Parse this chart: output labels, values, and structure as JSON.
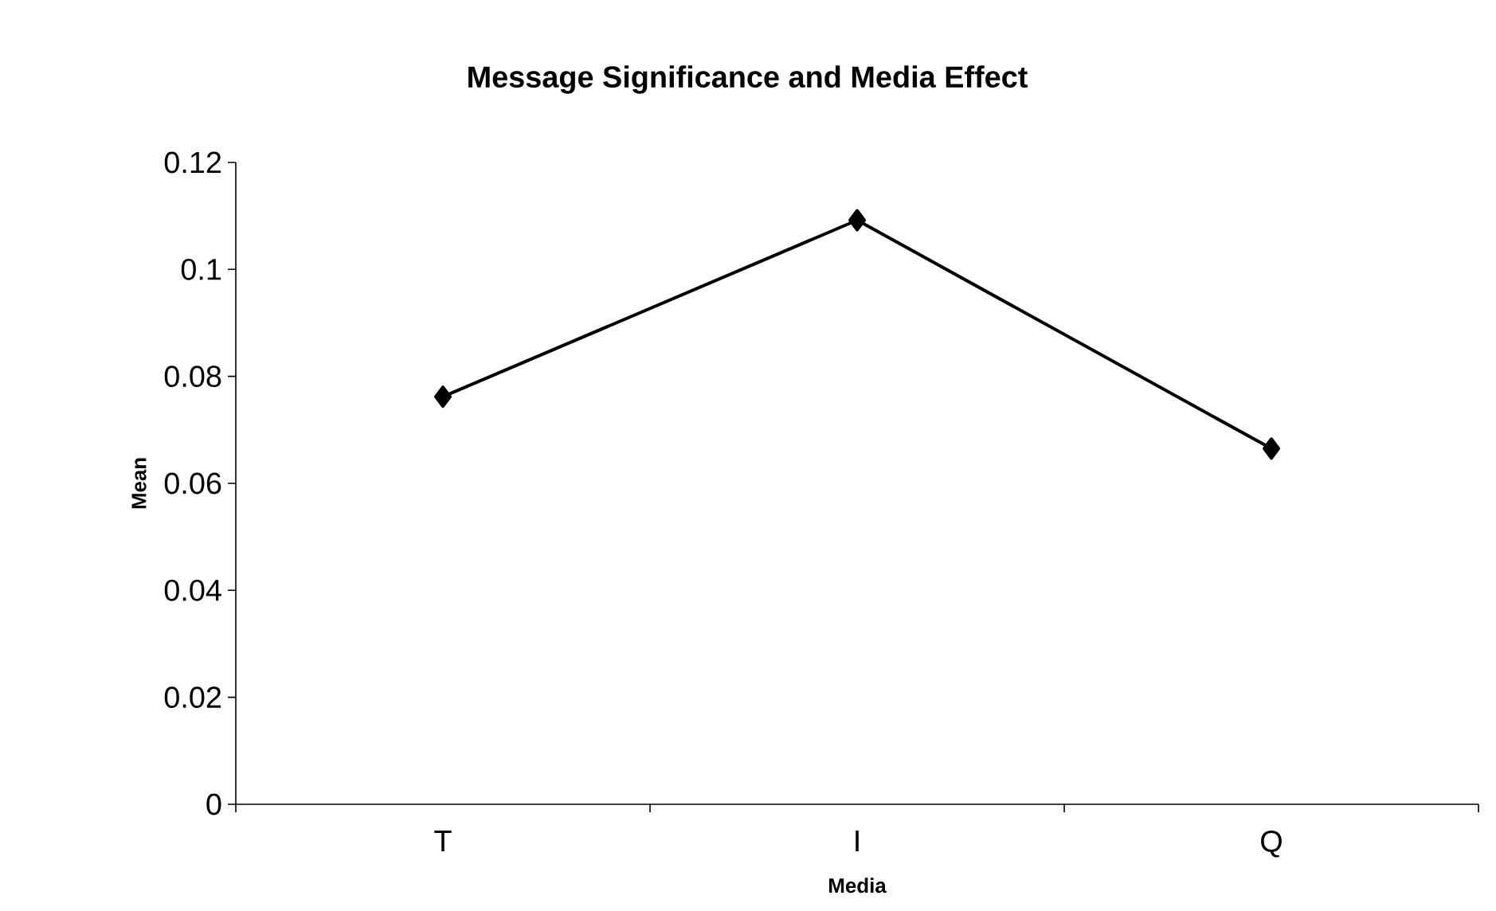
{
  "chart_data": {
    "type": "line",
    "title": "Message Significance and Media Effect",
    "xlabel": "Media",
    "ylabel": "Mean",
    "categories": [
      "T",
      "I",
      "Q"
    ],
    "series": [
      {
        "color": "#000000",
        "values": [
          0.0762,
          0.1092,
          0.0665
        ]
      }
    ],
    "ylim": [
      0,
      0.12
    ],
    "yticks": [
      0,
      0.02,
      0.04,
      0.06,
      0.08,
      0.1,
      0.12
    ],
    "grid": false,
    "marker": "diamond",
    "line_style": "solid"
  }
}
